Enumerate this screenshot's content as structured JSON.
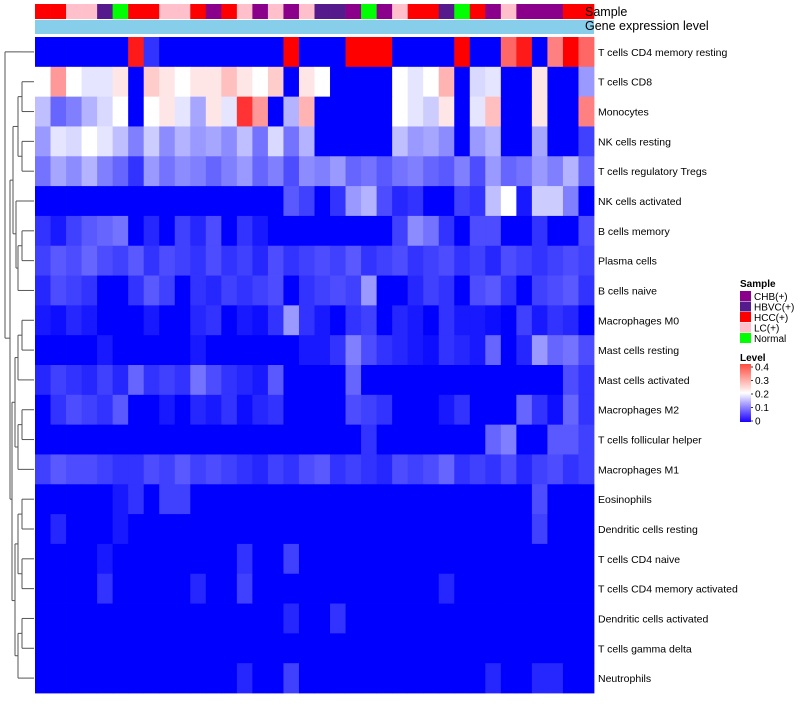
{
  "chart_data": {
    "type": "heatmap",
    "title": "",
    "colorscale": [
      "#0000ff",
      "#ffffff",
      "#ff0000"
    ],
    "value_range": [
      0,
      0.4
    ],
    "rows": [
      "T cells CD4 memory resting",
      "T cells CD8",
      "Monocytes",
      "NK cells resting",
      "T cells regulatory  Tregs",
      "NK cells activated",
      "B cells memory",
      "Plasma cells",
      "B cells naive",
      "Macrophages M0",
      "Mast cells resting",
      "Mast cells activated",
      "Macrophages M2",
      "T cells follicular helper",
      "Macrophages M1",
      "Eosinophils",
      "Dendritic cells resting",
      "T cells CD4 naive",
      "T cells CD4 memory activated",
      "Dendritic cells activated",
      "T cells gamma delta",
      "Neutrophils"
    ],
    "columns": 36,
    "column_annotations": [
      {
        "name": "Sample",
        "values": [
          "HCC(+)",
          "HCC(+)",
          "LC(+)",
          "LC(+)",
          "HBVC(+)",
          "Normal",
          "HCC(+)",
          "HCC(+)",
          "LC(+)",
          "LC(+)",
          "HCC(+)",
          "CHB(+)",
          "HCC(+)",
          "LC(+)",
          "CHB(+)",
          "LC(+)",
          "CHB(+)",
          "LC(+)",
          "HBVC(+)",
          "HBVC(+)",
          "CHB(+)",
          "Normal",
          "CHB(+)",
          "LC(+)",
          "HCC(+)",
          "HCC(+)",
          "HBVC(+)",
          "Normal",
          "HCC(+)",
          "CHB(+)",
          "LC(+)",
          "CHB(+)",
          "CHB(+)",
          "CHB(+)",
          "HCC(+)",
          "HCC(+)"
        ]
      },
      {
        "name": "Gene expression level",
        "color": "#87ceeb"
      }
    ],
    "values": [
      [
        0,
        0,
        0,
        0,
        0,
        0,
        0.38,
        0.04,
        0,
        0,
        0,
        0,
        0,
        0,
        0,
        0,
        0.4,
        0,
        0,
        0,
        0.4,
        0.4,
        0.4,
        0,
        0,
        0,
        0,
        0.4,
        0,
        0,
        0.32,
        0.38,
        0,
        0.3,
        0.4,
        0.32
      ],
      [
        0.2,
        0.28,
        0.2,
        0.18,
        0.18,
        0.22,
        0,
        0.24,
        0.22,
        0.2,
        0.22,
        0.22,
        0.25,
        0.22,
        0.2,
        0.24,
        0,
        0.22,
        0.2,
        0,
        0,
        0,
        0,
        0.2,
        0.18,
        0.2,
        0.26,
        0,
        0.17,
        0.18,
        0,
        0,
        0.22,
        0,
        0,
        0.12
      ],
      [
        0.15,
        0.08,
        0.1,
        0.14,
        0.17,
        0.2,
        0,
        0.2,
        0.22,
        0.18,
        0.13,
        0.22,
        0.18,
        0.36,
        0.28,
        0,
        0.14,
        0.26,
        0,
        0,
        0,
        0,
        0,
        0.2,
        0.18,
        0.16,
        0.22,
        0,
        0.18,
        0.25,
        0,
        0,
        0.22,
        0,
        0,
        0.3
      ],
      [
        0.12,
        0.18,
        0.17,
        0.2,
        0.18,
        0.15,
        0.1,
        0.16,
        0.11,
        0.14,
        0.12,
        0.13,
        0.11,
        0.15,
        0.09,
        0.17,
        0.09,
        0.14,
        0,
        0,
        0,
        0,
        0,
        0.15,
        0.12,
        0.13,
        0.11,
        0,
        0.12,
        0.14,
        0,
        0,
        0.13,
        0,
        0,
        0.05
      ],
      [
        0.09,
        0.13,
        0.11,
        0.14,
        0.1,
        0.08,
        0.04,
        0.12,
        0.09,
        0.11,
        0.1,
        0.08,
        0.1,
        0.12,
        0.08,
        0.1,
        0.06,
        0.11,
        0.1,
        0.12,
        0.08,
        0.09,
        0.07,
        0.09,
        0.1,
        0.08,
        0.07,
        0.1,
        0.06,
        0.12,
        0.08,
        0.09,
        0.12,
        0.1,
        0.14,
        0.08
      ],
      [
        0,
        0,
        0,
        0,
        0,
        0,
        0,
        0,
        0,
        0,
        0,
        0,
        0,
        0,
        0,
        0,
        0.07,
        0.05,
        0,
        0.04,
        0.12,
        0.14,
        0.06,
        0.03,
        0.04,
        0,
        0,
        0.05,
        0.04,
        0.15,
        0.2,
        0.02,
        0.16,
        0.16,
        0.1,
        0
      ],
      [
        0.04,
        0.02,
        0.05,
        0.07,
        0.08,
        0.09,
        0,
        0.03,
        0,
        0.05,
        0.03,
        0.06,
        0,
        0.04,
        0.02,
        0,
        0,
        0,
        0,
        0,
        0,
        0,
        0,
        0.05,
        0.11,
        0.09,
        0.04,
        0,
        0.06,
        0.06,
        0,
        0,
        0.04,
        0,
        0,
        0.06
      ],
      [
        0.05,
        0.07,
        0.06,
        0.08,
        0.06,
        0.05,
        0.07,
        0.04,
        0.06,
        0.05,
        0.04,
        0.06,
        0.04,
        0.05,
        0.03,
        0.06,
        0.04,
        0.05,
        0.06,
        0.05,
        0.07,
        0.04,
        0.05,
        0.06,
        0.04,
        0.05,
        0.06,
        0.04,
        0.05,
        0.03,
        0.06,
        0.05,
        0.04,
        0.05,
        0.06,
        0.05
      ],
      [
        0.03,
        0.06,
        0.05,
        0.04,
        0,
        0,
        0.04,
        0.07,
        0.05,
        0,
        0.04,
        0.03,
        0.05,
        0.04,
        0.05,
        0.06,
        0,
        0.04,
        0.05,
        0.06,
        0.05,
        0.12,
        0,
        0,
        0.03,
        0.05,
        0.04,
        0,
        0.06,
        0.07,
        0.04,
        0,
        0.05,
        0.06,
        0.07,
        0.04
      ],
      [
        0.02,
        0.01,
        0.03,
        0.02,
        0,
        0,
        0,
        0.02,
        0,
        0,
        0.03,
        0.04,
        0,
        0.02,
        0.01,
        0.04,
        0.12,
        0.04,
        0.02,
        0,
        0.04,
        0.05,
        0,
        0.03,
        0.02,
        0,
        0.04,
        0.02,
        0.02,
        0.01,
        0,
        0.05,
        0.02,
        0.04,
        0.03,
        0
      ],
      [
        0,
        0,
        0,
        0,
        0.02,
        0,
        0,
        0,
        0,
        0,
        0.02,
        0,
        0,
        0,
        0,
        0,
        0,
        0.02,
        0.02,
        0.04,
        0.1,
        0.06,
        0.04,
        0.03,
        0.02,
        0.01,
        0.04,
        0.03,
        0.02,
        0.08,
        0,
        0.03,
        0.12,
        0.08,
        0.09,
        0.06
      ],
      [
        0.03,
        0.05,
        0.04,
        0.03,
        0.05,
        0.03,
        0.08,
        0.04,
        0.05,
        0.04,
        0.09,
        0.06,
        0.04,
        0.03,
        0.02,
        0.07,
        0,
        0,
        0,
        0,
        0.08,
        0,
        0,
        0,
        0,
        0,
        0,
        0,
        0,
        0,
        0,
        0,
        0,
        0,
        0.06,
        0.04
      ],
      [
        0,
        0.04,
        0.06,
        0.05,
        0.04,
        0.07,
        0,
        0,
        0.02,
        0,
        0.03,
        0.02,
        0.04,
        0.01,
        0.03,
        0.04,
        0,
        0,
        0,
        0,
        0.06,
        0.05,
        0.04,
        0,
        0,
        0,
        0.02,
        0.04,
        0,
        0,
        0,
        0.08,
        0.04,
        0.01,
        0.08,
        0.04
      ],
      [
        0,
        0,
        0,
        0,
        0,
        0,
        0,
        0,
        0,
        0,
        0,
        0,
        0,
        0,
        0,
        0,
        0,
        0,
        0,
        0,
        0,
        0.04,
        0,
        0,
        0,
        0,
        0,
        0,
        0,
        0.08,
        0.1,
        0,
        0,
        0.07,
        0.07,
        0.05
      ],
      [
        0.05,
        0.07,
        0.06,
        0.06,
        0.05,
        0.04,
        0.04,
        0.06,
        0.05,
        0.07,
        0.05,
        0.06,
        0.05,
        0.04,
        0.03,
        0.05,
        0.04,
        0.06,
        0.07,
        0.04,
        0.05,
        0.04,
        0.03,
        0.06,
        0.05,
        0.06,
        0.08,
        0.04,
        0.05,
        0.04,
        0.06,
        0.03,
        0.05,
        0.06,
        0.04,
        0.05
      ],
      [
        0,
        0,
        0,
        0,
        0,
        0.02,
        0.04,
        0,
        0.05,
        0.05,
        0,
        0,
        0,
        0,
        0,
        0,
        0,
        0,
        0,
        0,
        0,
        0,
        0,
        0,
        0,
        0,
        0,
        0,
        0,
        0,
        0,
        0,
        0.06,
        0,
        0,
        0
      ],
      [
        0,
        0.03,
        0,
        0,
        0,
        0.02,
        0,
        0,
        0,
        0,
        0,
        0,
        0,
        0,
        0,
        0,
        0,
        0,
        0,
        0,
        0,
        0,
        0,
        0,
        0,
        0,
        0,
        0,
        0,
        0,
        0,
        0,
        0.05,
        0,
        0,
        0
      ],
      [
        0,
        0,
        0,
        0,
        0.02,
        0,
        0,
        0,
        0,
        0,
        0,
        0,
        0,
        0.04,
        0,
        0,
        0.05,
        0,
        0,
        0,
        0,
        0,
        0,
        0,
        0,
        0,
        0,
        0,
        0,
        0,
        0,
        0,
        0,
        0,
        0,
        0
      ],
      [
        0,
        0,
        0,
        0,
        0.04,
        0,
        0,
        0,
        0,
        0,
        0.03,
        0,
        0,
        0.05,
        0,
        0,
        0,
        0,
        0,
        0,
        0,
        0,
        0,
        0,
        0,
        0,
        0.03,
        0,
        0,
        0,
        0,
        0,
        0,
        0,
        0,
        0
      ],
      [
        0,
        0,
        0,
        0,
        0,
        0,
        0,
        0,
        0,
        0,
        0,
        0,
        0,
        0,
        0,
        0,
        0.03,
        0,
        0,
        0.04,
        0,
        0,
        0,
        0,
        0,
        0,
        0,
        0,
        0,
        0,
        0,
        0,
        0,
        0,
        0,
        0
      ],
      [
        0,
        0,
        0,
        0,
        0,
        0,
        0,
        0,
        0,
        0,
        0,
        0,
        0,
        0,
        0,
        0,
        0,
        0,
        0,
        0,
        0,
        0,
        0,
        0,
        0,
        0,
        0,
        0,
        0,
        0,
        0,
        0,
        0,
        0,
        0,
        0
      ],
      [
        0,
        0,
        0,
        0,
        0,
        0,
        0,
        0,
        0,
        0,
        0,
        0,
        0,
        0.03,
        0,
        0,
        0.05,
        0,
        0,
        0,
        0,
        0,
        0,
        0,
        0,
        0,
        0,
        0,
        0,
        0.03,
        0,
        0,
        0.03,
        0.03,
        0,
        0
      ]
    ]
  },
  "legend": {
    "sample": {
      "title": "Sample",
      "items": [
        {
          "label": "CHB(+)",
          "color": "#8b008b"
        },
        {
          "label": "HBVC(+)",
          "color": "#551a8b"
        },
        {
          "label": "HCC(+)",
          "color": "#ff0000"
        },
        {
          "label": "LC(+)",
          "color": "#ffc0cb"
        },
        {
          "label": "Normal",
          "color": "#00ff00"
        }
      ]
    },
    "level": {
      "title": "Level",
      "ticks": [
        "0.4",
        "0.3",
        "0.2",
        "0.1",
        "0"
      ]
    }
  }
}
